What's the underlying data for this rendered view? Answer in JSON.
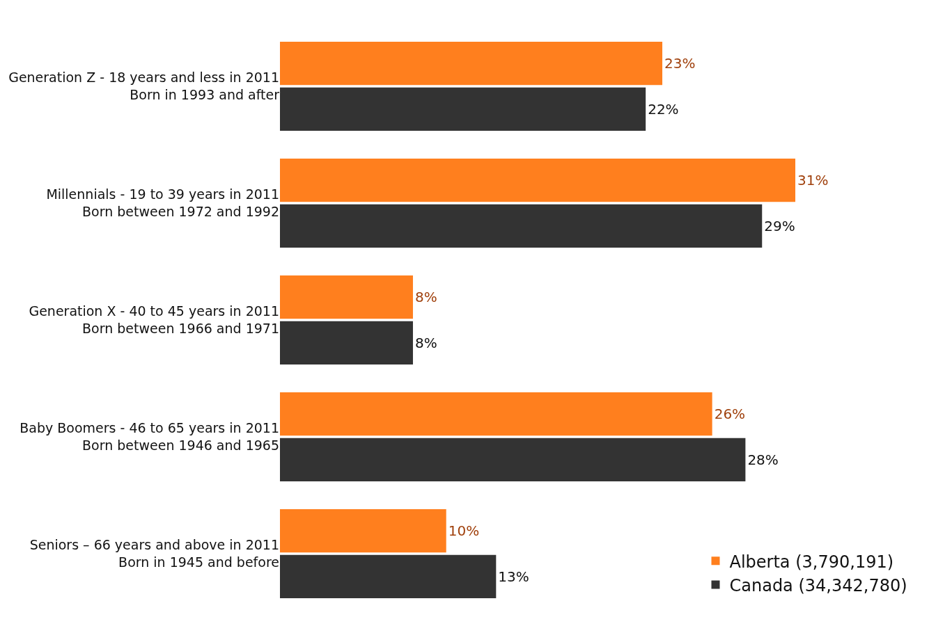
{
  "chart_data": {
    "type": "bar",
    "orientation": "horizontal",
    "categories": [
      "Generation Z - 18 years and less in 2011\nBorn in 1993 and after",
      "Millennials - 19 to 39 years in 2011\nBorn between 1972 and 1992",
      "Generation X - 40 to 45 years in 2011\nBorn between 1966 and 1971",
      "Baby Boomers - 46 to 65 years in 2011\nBorn between 1946 and 1965",
      "Seniors – 66 years and above in 2011\nBorn in 1945 and before"
    ],
    "series": [
      {
        "name": "Alberta (3,790,191)",
        "color": "#ff7f1e",
        "values": [
          23,
          31,
          8,
          26,
          10
        ],
        "value_labels": [
          "23%",
          "31%",
          "8%",
          "26%",
          "10%"
        ]
      },
      {
        "name": "Canada (34,342,780)",
        "color": "#333333",
        "values": [
          22,
          29,
          8,
          28,
          13
        ],
        "value_labels": [
          "22%",
          "29%",
          "8%",
          "28%",
          "13%"
        ]
      }
    ],
    "legend": "bottom right"
  }
}
